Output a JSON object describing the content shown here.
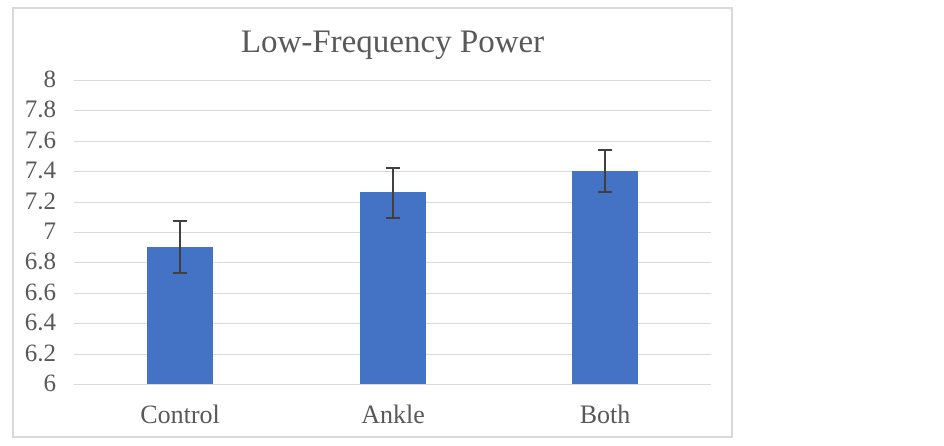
{
  "chart_data": {
    "type": "bar",
    "title": "Low-Frequency Power",
    "xlabel": "",
    "ylabel": "",
    "categories": [
      "Control",
      "Ankle",
      "Both"
    ],
    "values": [
      6.9,
      7.26,
      7.4
    ],
    "error_bars": {
      "low": [
        6.73,
        7.09,
        7.26
      ],
      "high": [
        7.07,
        7.42,
        7.54
      ]
    },
    "ylim": [
      6,
      8
    ],
    "ytick_step": 0.2,
    "ytick_labels": [
      "8",
      "7.8",
      "7.6",
      "7.4",
      "7.2",
      "7",
      "6.8",
      "6.6",
      "6.4",
      "6.2",
      "6"
    ],
    "grid": true,
    "legend": false,
    "colors": {
      "bar": "#4472c4",
      "error_bar": "#404040",
      "gridline": "#d9d9d9",
      "text": "#595959",
      "border": "#d9d9d9",
      "background": "#ffffff"
    }
  }
}
